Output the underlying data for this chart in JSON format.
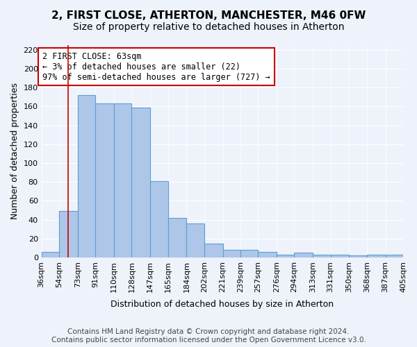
{
  "title_line1": "2, FIRST CLOSE, ATHERTON, MANCHESTER, M46 0FW",
  "title_line2": "Size of property relative to detached houses in Atherton",
  "xlabel": "Distribution of detached houses by size in Atherton",
  "ylabel": "Number of detached properties",
  "bin_edges": [
    36,
    54,
    73,
    91,
    110,
    128,
    147,
    165,
    184,
    202,
    221,
    239,
    257,
    276,
    294,
    313,
    331,
    350,
    368,
    387,
    405
  ],
  "bar_heights": [
    6,
    49,
    172,
    163,
    163,
    159,
    81,
    42,
    36,
    15,
    8,
    8,
    6,
    3,
    5,
    3,
    3,
    2,
    3,
    3
  ],
  "categories": [
    "36sqm",
    "54sqm",
    "73sqm",
    "91sqm",
    "110sqm",
    "128sqm",
    "147sqm",
    "165sqm",
    "184sqm",
    "202sqm",
    "221sqm",
    "239sqm",
    "257sqm",
    "276sqm",
    "294sqm",
    "313sqm",
    "331sqm",
    "350sqm",
    "368sqm",
    "387sqm",
    "405sqm"
  ],
  "bar_color": "#aec6e8",
  "bar_edge_color": "#5a9fd4",
  "annotation_text": "2 FIRST CLOSE: 63sqm\n← 3% of detached houses are smaller (22)\n97% of semi-detached houses are larger (727) →",
  "annotation_box_color": "#ffffff",
  "annotation_box_edge": "#cc0000",
  "red_line_x": 63,
  "ylim": [
    0,
    225
  ],
  "yticks": [
    0,
    20,
    40,
    60,
    80,
    100,
    120,
    140,
    160,
    180,
    200,
    220
  ],
  "footnote": "Contains HM Land Registry data © Crown copyright and database right 2024.\nContains public sector information licensed under the Open Government Licence v3.0.",
  "background_color": "#eef2fa",
  "grid_color": "#ffffff",
  "title_fontsize": 11,
  "subtitle_fontsize": 10,
  "axis_label_fontsize": 9,
  "tick_fontsize": 8,
  "annotation_fontsize": 8.5,
  "footnote_fontsize": 7.5
}
